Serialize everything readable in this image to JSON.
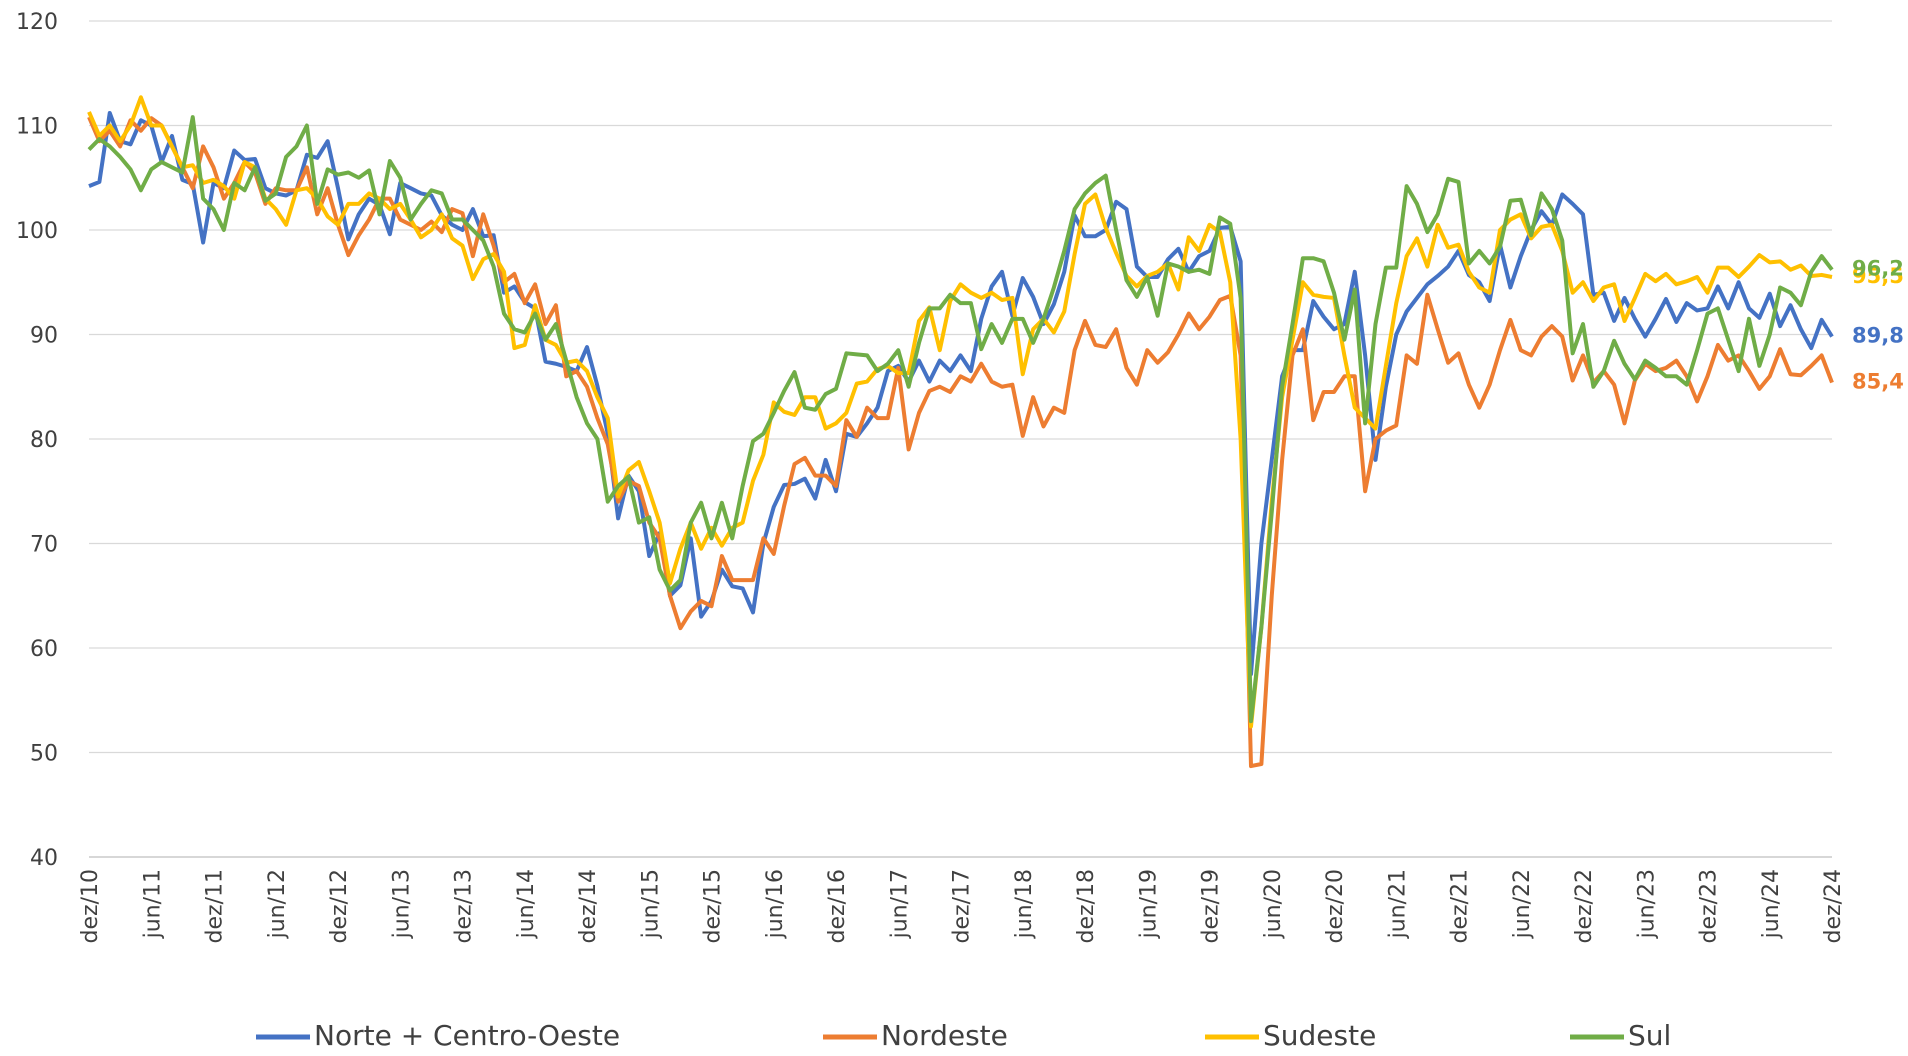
{
  "chart_data": {
    "type": "line",
    "categories": [
      "dez/10",
      null,
      null,
      null,
      null,
      null,
      "jun/11",
      null,
      null,
      null,
      null,
      null,
      "dez/11",
      null,
      null,
      null,
      null,
      null,
      "jun/12",
      null,
      null,
      null,
      null,
      null,
      "dez/12",
      null,
      null,
      null,
      null,
      null,
      "jun/13",
      null,
      null,
      null,
      null,
      null,
      "dez/13",
      null,
      null,
      null,
      null,
      null,
      "jun/14",
      null,
      null,
      null,
      null,
      null,
      "dez/14",
      null,
      null,
      null,
      null,
      null,
      "jun/15",
      null,
      null,
      null,
      null,
      null,
      "dez/15",
      null,
      null,
      null,
      null,
      null,
      "jun/16",
      null,
      null,
      null,
      null,
      null,
      "dez/16",
      null,
      null,
      null,
      null,
      null,
      "jun/17",
      null,
      null,
      null,
      null,
      null,
      "dez/17",
      null,
      null,
      null,
      null,
      null,
      "jun/18",
      null,
      null,
      null,
      null,
      null,
      "dez/18",
      null,
      null,
      null,
      null,
      null,
      "jun/19",
      null,
      null,
      null,
      null,
      null,
      "dez/19",
      null,
      null,
      null,
      null,
      null,
      "jun/20",
      null,
      null,
      null,
      null,
      null,
      "dez/20",
      null,
      null,
      null,
      null,
      null,
      "jun/21",
      null,
      null,
      null,
      null,
      null,
      "dez/21",
      null,
      null,
      null,
      null,
      null,
      "jun/22",
      null,
      null,
      null,
      null,
      null,
      "dez/22",
      null,
      null,
      null,
      null,
      null,
      "jun/23",
      null,
      null,
      null,
      null,
      null,
      "dez/23",
      null,
      null,
      null,
      null,
      null,
      "jun/24",
      null,
      null,
      null,
      null,
      null,
      "dez/24"
    ],
    "series": [
      {
        "name": "Norte + Centro-Oeste",
        "color": "#4472c4",
        "value_labels": {
          "168": "89,8"
        },
        "values": [
          104.2,
          104.6,
          111.2,
          108.5,
          108.2,
          110.5,
          110,
          106.5,
          109,
          104.8,
          104.4,
          98.8,
          104.5,
          104,
          107.6,
          106.7,
          106.8,
          104,
          103.5,
          103.3,
          103.8,
          107.2,
          106.9,
          108.5,
          104,
          99.1,
          101.5,
          103,
          102.4,
          99.6,
          104.5,
          104,
          103.5,
          103.3,
          101.4,
          100.5,
          100,
          102,
          99.4,
          99.5,
          94,
          94.6,
          93.1,
          92.5,
          87.4,
          87.2,
          86.9,
          86.5,
          88.8,
          85.1,
          80.5,
          72.4,
          76.5,
          75,
          68.8,
          71,
          65,
          66,
          70.5,
          63,
          64.5,
          67.5,
          65.9,
          65.7,
          63.4,
          70,
          73.5,
          75.6,
          75.7,
          76.2,
          74.3,
          78,
          75,
          80.5,
          80.2,
          81.5,
          83,
          86.5,
          87,
          85.5,
          87.5,
          85.5,
          87.5,
          86.5,
          88,
          86.5,
          91.5,
          94.6,
          96,
          91.8,
          95.4,
          93.6,
          91,
          92.9,
          96,
          101.4,
          99.4,
          99.4,
          100,
          102.7,
          102,
          96.5,
          95.5,
          95.5,
          97.2,
          98.2,
          96,
          97.5,
          98,
          100.2,
          100.3,
          97,
          57.5,
          70,
          78,
          86,
          88.5,
          88.5,
          93.2,
          91.7,
          90.5,
          91,
          96,
          88,
          78,
          85,
          90,
          92.2,
          93.5,
          94.8,
          95.6,
          96.5,
          98,
          95.7,
          95,
          93.2,
          98.6,
          94.5,
          97.5,
          100,
          101.8,
          100.5,
          103.4,
          102.5,
          101.5,
          93.8,
          94,
          91.3,
          93.5,
          91.5,
          89.8,
          91.5,
          93.4,
          91.2,
          93,
          92.3,
          92.5,
          94.6,
          92.5,
          95,
          92.5,
          91.6,
          93.9,
          90.8,
          92.8,
          90.5,
          88.7,
          91.4,
          89.8
        ]
      },
      {
        "name": "Nordeste",
        "color": "#ed7d31",
        "value_labels": {
          "168": "85,4"
        },
        "values": [
          110.8,
          108.5,
          109.5,
          108,
          110.5,
          109.5,
          110.7,
          110,
          108,
          106,
          104,
          108,
          106,
          103,
          104.5,
          106.5,
          105.5,
          102.5,
          104,
          103.8,
          103.8,
          106,
          101.5,
          104,
          100.5,
          97.6,
          99.5,
          101,
          103,
          103,
          101,
          100.5,
          100,
          100.8,
          99.8,
          102,
          101.6,
          97.5,
          101.5,
          98.5,
          95,
          95.8,
          93,
          94.8,
          91,
          92.8,
          86,
          86.5,
          85,
          82,
          79.5,
          74,
          76,
          75.5,
          72,
          70.5,
          65,
          61.9,
          63.5,
          64.5,
          64,
          68.8,
          66.5,
          66.5,
          66.5,
          70.5,
          69,
          73.6,
          77.6,
          78.2,
          76.5,
          76.5,
          75.5,
          81.8,
          80.2,
          83,
          82,
          82,
          86.8,
          79,
          82.5,
          84.6,
          85,
          84.5,
          86,
          85.5,
          87.2,
          85.5,
          85,
          85.2,
          80.3,
          84,
          81.2,
          83,
          82.5,
          88.5,
          91.3,
          89,
          88.8,
          90.5,
          86.8,
          85.2,
          88.5,
          87.3,
          88.3,
          90,
          92,
          90.5,
          91.7,
          93.3,
          93.7,
          88,
          48.7,
          48.9,
          65,
          78,
          88,
          90.5,
          81.8,
          84.5,
          84.5,
          86,
          86,
          75,
          80,
          80.8,
          81.3,
          88,
          87.2,
          93.8,
          90.5,
          87.3,
          88.2,
          85.2,
          83,
          85.2,
          88.5,
          91.4,
          88.5,
          88,
          89.8,
          90.8,
          89.8,
          85.6,
          88,
          85.4,
          86.5,
          85.2,
          81.5,
          85.6,
          87.2,
          86.5,
          86.8,
          87.5,
          86,
          83.6,
          86,
          89,
          87.5,
          88,
          86.5,
          84.8,
          86,
          88.6,
          86.2,
          86.1,
          87,
          88,
          85.4
        ]
      },
      {
        "name": "Sudeste",
        "color": "#ffc000",
        "value_labels": {
          "168": "95,5"
        },
        "values": [
          111.3,
          109,
          110,
          108.5,
          110,
          112.7,
          110,
          110,
          108,
          106,
          106.2,
          104.5,
          104.8,
          104.2,
          103,
          106.5,
          106,
          103,
          102,
          100.5,
          103.8,
          104,
          103,
          101.3,
          100.5,
          102.5,
          102.5,
          103.5,
          103,
          102,
          102.5,
          101,
          99.3,
          100,
          101.5,
          99.2,
          98.5,
          95.3,
          97.2,
          97.7,
          96,
          88.7,
          89,
          92.8,
          89.5,
          89,
          87.3,
          87.5,
          86.5,
          84,
          82,
          74.5,
          77,
          77.8,
          75,
          72,
          66.2,
          69.5,
          72,
          69.5,
          71.5,
          69.8,
          71.5,
          72,
          76,
          78.5,
          83.5,
          82.6,
          82.3,
          84,
          84,
          81,
          81.5,
          82.5,
          85.3,
          85.5,
          86.7,
          87,
          86.3,
          86.3,
          91.3,
          92.6,
          88.5,
          93.2,
          94.8,
          94,
          93.5,
          94,
          93.3,
          93.5,
          86.2,
          90.5,
          91.5,
          90.2,
          92.2,
          97.7,
          102.5,
          103.4,
          100.2,
          97.8,
          95.6,
          94.6,
          95.6,
          96,
          96.8,
          94.3,
          99.3,
          98,
          100.5,
          99.8,
          95,
          80,
          52.5,
          62,
          74,
          84,
          89.5,
          95,
          93.8,
          93.6,
          93.5,
          88,
          83,
          82,
          81,
          87,
          93,
          97.5,
          99.2,
          96.5,
          100.5,
          98.3,
          98.6,
          96,
          94.5,
          94,
          100,
          101,
          101.5,
          99.2,
          100.3,
          100.5,
          98,
          94,
          95,
          93.2,
          94.5,
          94.8,
          91.3,
          93.5,
          95.8,
          95.1,
          95.8,
          94.8,
          95.1,
          95.5,
          94,
          96.4,
          96.4,
          95.5,
          96.5,
          97.6,
          96.9,
          97,
          96.2,
          96.6,
          95.6,
          95.7,
          95.5
        ]
      },
      {
        "name": "Sul",
        "color": "#70ad47",
        "value_labels": {
          "168": "96,2"
        },
        "values": [
          107.7,
          108.7,
          108,
          107,
          105.8,
          103.8,
          105.8,
          106.5,
          106,
          105.5,
          110.8,
          103,
          102,
          100,
          104.5,
          103.8,
          106,
          102.8,
          103.5,
          107,
          108,
          110,
          102.5,
          105.8,
          105.3,
          105.5,
          105,
          105.7,
          101.5,
          106.6,
          105,
          101,
          102.5,
          103.8,
          103.5,
          101,
          101,
          100,
          99,
          96.5,
          92,
          90.5,
          90.2,
          92,
          89.5,
          91,
          87.5,
          84,
          81.5,
          80,
          74,
          75.5,
          76.4,
          72,
          72.5,
          67.5,
          65.5,
          66.5,
          72,
          73.9,
          70.5,
          73.9,
          70.5,
          75.5,
          79.8,
          80.5,
          82.5,
          84.6,
          86.4,
          83,
          82.8,
          84.3,
          84.8,
          88.2,
          88.1,
          88,
          86.5,
          87.2,
          88.5,
          85,
          89.2,
          92.5,
          92.5,
          93.8,
          93,
          93,
          88.6,
          91,
          89.2,
          91.5,
          91.5,
          89.2,
          91.5,
          94.5,
          98,
          102,
          103.5,
          104.5,
          105.2,
          100,
          95.2,
          93.6,
          95.5,
          91.8,
          96.8,
          96.5,
          96,
          96.2,
          95.8,
          101.2,
          100.6,
          93.5,
          53,
          62,
          73,
          85,
          91,
          97.3,
          97.3,
          97,
          94,
          89.5,
          94.3,
          81.5,
          91,
          96.4,
          96.4,
          104.2,
          102.5,
          99.8,
          101.5,
          104.9,
          104.6,
          96.8,
          98,
          96.8,
          98.4,
          102.8,
          102.9,
          99.5,
          103.5,
          102,
          99,
          88.2,
          91,
          85,
          86.5,
          89.4,
          87.2,
          85.7,
          87.5,
          86.8,
          86,
          86,
          85.2,
          88.5,
          92,
          92.5,
          89.5,
          86.5,
          91.5,
          87,
          90,
          94.5,
          94,
          92.8,
          96,
          97.5,
          96.2
        ]
      }
    ],
    "ylim": [
      40,
      120
    ],
    "yticks": [
      40,
      50,
      60,
      70,
      80,
      90,
      100,
      110,
      120
    ],
    "grid": true,
    "legend": "bottom"
  }
}
